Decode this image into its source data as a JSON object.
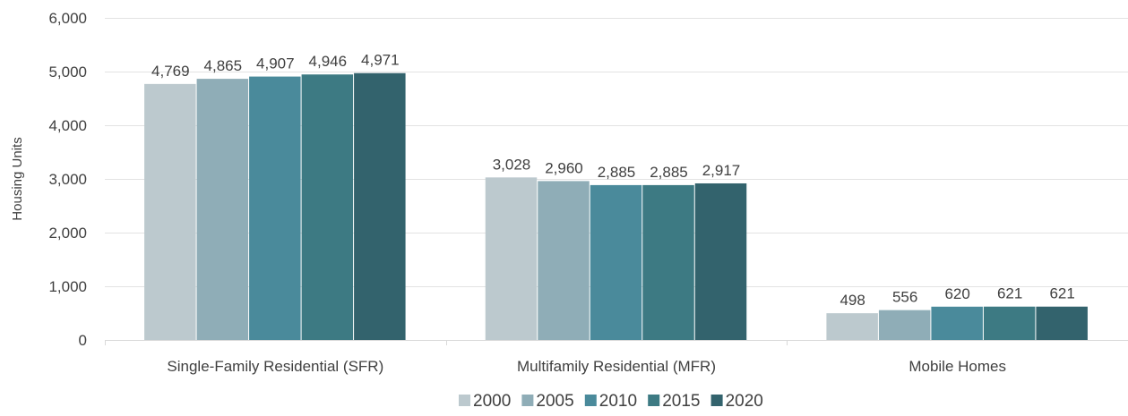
{
  "chart_data": {
    "type": "bar",
    "title": "",
    "xlabel": "",
    "ylabel": "Housing Units",
    "categories": [
      "Single-Family Residential (SFR)",
      "Multifamily Residential (MFR)",
      "Mobile Homes"
    ],
    "series": [
      {
        "name": "2000",
        "color": "#bcc9ce",
        "values": [
          4769,
          3028,
          498
        ],
        "labels": [
          "4,769",
          "3,028",
          "498"
        ]
      },
      {
        "name": "2005",
        "color": "#8fadb7",
        "values": [
          4865,
          2960,
          556
        ],
        "labels": [
          "4,865",
          "2,960",
          "556"
        ]
      },
      {
        "name": "2010",
        "color": "#4a8a9b",
        "values": [
          4907,
          2885,
          620
        ],
        "labels": [
          "4,907",
          "2,885",
          "620"
        ]
      },
      {
        "name": "2015",
        "color": "#3d7a83",
        "values": [
          4946,
          2885,
          621
        ],
        "labels": [
          "4,946",
          "2,885",
          "621"
        ]
      },
      {
        "name": "2020",
        "color": "#33636d",
        "values": [
          4971,
          2917,
          621
        ],
        "labels": [
          "4,971",
          "2,917",
          "621"
        ]
      }
    ],
    "ylim": [
      0,
      6000
    ],
    "yticks": [
      0,
      1000,
      2000,
      3000,
      4000,
      5000,
      6000
    ],
    "ytick_labels": [
      "0",
      "1,000",
      "2,000",
      "3,000",
      "4,000",
      "5,000",
      "6,000"
    ],
    "grid": true,
    "legend": "bottom-center"
  }
}
